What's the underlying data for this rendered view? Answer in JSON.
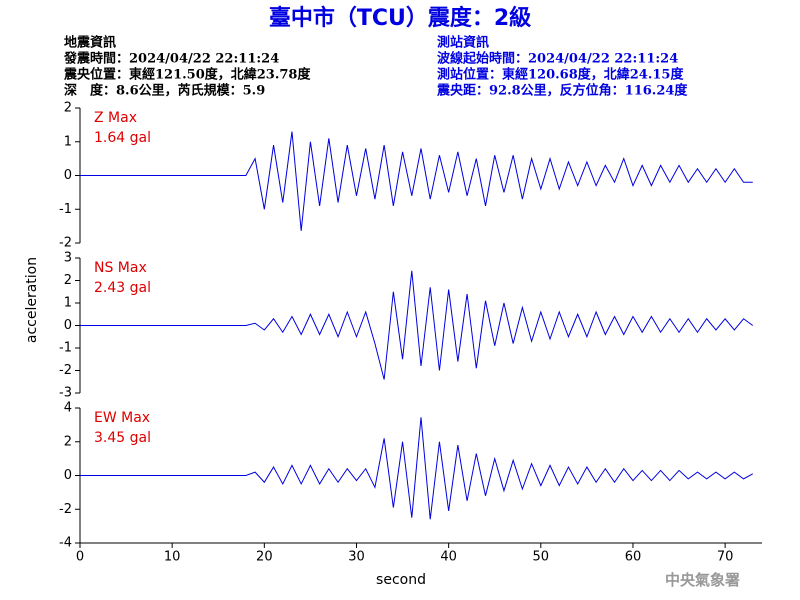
{
  "title": "臺中市（TCU）震度：2級",
  "info_left": [
    "地震資訊",
    "發震時間：2024/04/22 22:11:24",
    "震央位置：東經121.50度，北緯23.78度",
    "深　度：8.6公里，芮氏規模：5.9"
  ],
  "info_right": [
    "測站資訊",
    "波線起始時間：2024/04/22 22:11:24",
    "測站位置：東經120.68度，北緯24.15度",
    "震央距：92.8公里，反方位角：116.24度"
  ],
  "footer": "中央氣象署",
  "chart_data": [
    {
      "type": "line",
      "annotation": [
        "Z Max",
        "1.64 gal"
      ],
      "xlim": [
        0,
        74
      ],
      "ylim": [
        -2,
        2
      ],
      "yticks": [
        -2,
        -1,
        0,
        1,
        2
      ],
      "x": [
        0,
        1,
        2,
        3,
        4,
        5,
        6,
        7,
        8,
        9,
        10,
        11,
        12,
        13,
        14,
        15,
        16,
        17,
        18,
        19,
        20,
        21,
        22,
        23,
        24,
        25,
        26,
        27,
        28,
        29,
        30,
        31,
        32,
        33,
        34,
        35,
        36,
        37,
        38,
        39,
        40,
        41,
        42,
        43,
        44,
        45,
        46,
        47,
        48,
        49,
        50,
        51,
        52,
        53,
        54,
        55,
        56,
        57,
        58,
        59,
        60,
        61,
        62,
        63,
        64,
        65,
        66,
        67,
        68,
        69,
        70,
        71,
        72,
        73
      ],
      "series": [
        {
          "name": "Z",
          "color": "#0000e0",
          "values": [
            0,
            0,
            0,
            0,
            0,
            0,
            0,
            0,
            0,
            0,
            0,
            0,
            0,
            0,
            0,
            0,
            0,
            0,
            0,
            0.5,
            -1.0,
            0.9,
            -0.8,
            1.3,
            -1.64,
            1.0,
            -0.9,
            1.1,
            -0.8,
            0.9,
            -0.6,
            0.8,
            -0.7,
            0.9,
            -0.9,
            0.7,
            -0.6,
            0.8,
            -0.7,
            0.6,
            -0.5,
            0.7,
            -0.6,
            0.5,
            -0.9,
            0.6,
            -0.5,
            0.6,
            -0.7,
            0.5,
            -0.4,
            0.5,
            -0.4,
            0.4,
            -0.3,
            0.4,
            -0.3,
            0.3,
            -0.2,
            0.5,
            -0.3,
            0.3,
            -0.3,
            0.3,
            -0.2,
            0.3,
            -0.2,
            0.2,
            -0.2,
            0.2,
            -0.2,
            0.2,
            -0.2,
            -0.2
          ]
        }
      ]
    },
    {
      "type": "line",
      "annotation": [
        "NS Max",
        "2.43 gal"
      ],
      "ylabel": "acceleration",
      "xlim": [
        0,
        74
      ],
      "ylim": [
        -3,
        3
      ],
      "yticks": [
        -3,
        -2,
        -1,
        0,
        1,
        2,
        3
      ],
      "x": [
        0,
        1,
        2,
        3,
        4,
        5,
        6,
        7,
        8,
        9,
        10,
        11,
        12,
        13,
        14,
        15,
        16,
        17,
        18,
        19,
        20,
        21,
        22,
        23,
        24,
        25,
        26,
        27,
        28,
        29,
        30,
        31,
        32,
        33,
        34,
        35,
        36,
        37,
        38,
        39,
        40,
        41,
        42,
        43,
        44,
        45,
        46,
        47,
        48,
        49,
        50,
        51,
        52,
        53,
        54,
        55,
        56,
        57,
        58,
        59,
        60,
        61,
        62,
        63,
        64,
        65,
        66,
        67,
        68,
        69,
        70,
        71,
        72,
        73
      ],
      "series": [
        {
          "name": "NS",
          "color": "#0000e0",
          "values": [
            0,
            0,
            0,
            0,
            0,
            0,
            0,
            0,
            0,
            0,
            0,
            0,
            0,
            0,
            0,
            0,
            0,
            0,
            0,
            0.1,
            -0.2,
            0.3,
            -0.3,
            0.4,
            -0.4,
            0.5,
            -0.4,
            0.5,
            -0.5,
            0.6,
            -0.5,
            0.6,
            -0.8,
            -2.4,
            1.5,
            -1.5,
            2.43,
            -1.8,
            1.7,
            -2.0,
            1.6,
            -1.6,
            1.4,
            -1.9,
            1.1,
            -0.9,
            1.0,
            -0.8,
            0.8,
            -0.7,
            0.6,
            -0.6,
            0.6,
            -0.5,
            0.5,
            -0.5,
            0.6,
            -0.4,
            0.4,
            -0.4,
            0.4,
            -0.3,
            0.4,
            -0.3,
            0.3,
            -0.3,
            0.3,
            -0.3,
            0.3,
            -0.2,
            0.3,
            -0.2,
            0.3,
            0.0
          ]
        }
      ]
    },
    {
      "type": "line",
      "annotation": [
        "EW Max",
        "3.45 gal"
      ],
      "xlabel": "second",
      "xlim": [
        0,
        74
      ],
      "xticks": [
        0,
        10,
        20,
        30,
        40,
        50,
        60,
        70
      ],
      "ylim": [
        -4,
        4
      ],
      "yticks": [
        -4,
        -2,
        0,
        2,
        4
      ],
      "x": [
        0,
        1,
        2,
        3,
        4,
        5,
        6,
        7,
        8,
        9,
        10,
        11,
        12,
        13,
        14,
        15,
        16,
        17,
        18,
        19,
        20,
        21,
        22,
        23,
        24,
        25,
        26,
        27,
        28,
        29,
        30,
        31,
        32,
        33,
        34,
        35,
        36,
        37,
        38,
        39,
        40,
        41,
        42,
        43,
        44,
        45,
        46,
        47,
        48,
        49,
        50,
        51,
        52,
        53,
        54,
        55,
        56,
        57,
        58,
        59,
        60,
        61,
        62,
        63,
        64,
        65,
        66,
        67,
        68,
        69,
        70,
        71,
        72,
        73
      ],
      "series": [
        {
          "name": "EW",
          "color": "#0000e0",
          "values": [
            0,
            0,
            0,
            0,
            0,
            0,
            0,
            0,
            0,
            0,
            0,
            0,
            0,
            0,
            0,
            0,
            0,
            0,
            0,
            0.2,
            -0.4,
            0.5,
            -0.5,
            0.6,
            -0.5,
            0.6,
            -0.5,
            0.4,
            -0.4,
            0.4,
            -0.3,
            0.4,
            -0.7,
            2.2,
            -1.9,
            2.0,
            -2.5,
            3.45,
            -2.6,
            2.0,
            -2.1,
            1.8,
            -1.5,
            1.3,
            -1.2,
            1.0,
            -0.9,
            0.9,
            -0.8,
            0.7,
            -0.6,
            0.6,
            -0.6,
            0.5,
            -0.5,
            0.5,
            -0.4,
            0.4,
            -0.4,
            0.4,
            -0.3,
            0.3,
            -0.3,
            0.3,
            -0.3,
            0.3,
            -0.2,
            0.2,
            -0.2,
            0.2,
            -0.2,
            0.2,
            -0.2,
            0.1
          ]
        }
      ]
    }
  ]
}
